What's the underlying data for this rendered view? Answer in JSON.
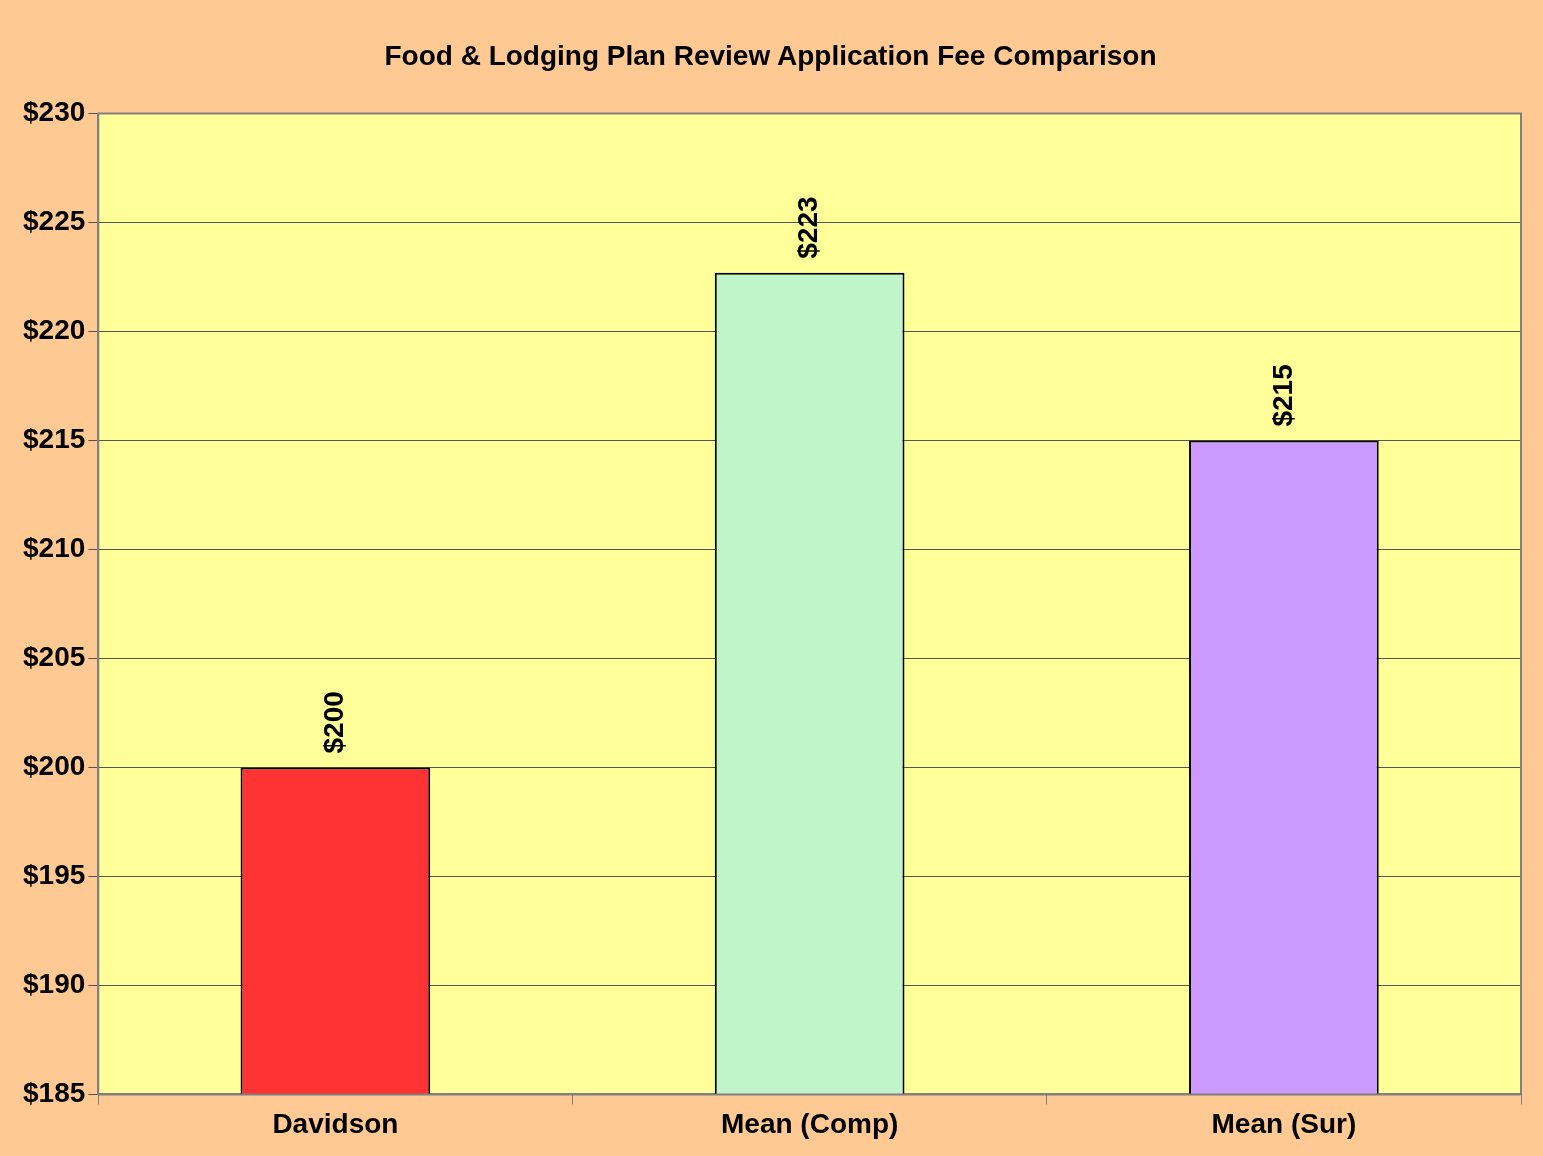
{
  "chart_data": {
    "type": "bar",
    "title": "Food & Lodging Plan Review Application Fee Comparison",
    "categories": [
      "Davidson",
      "Mean (Comp)",
      "Mean (Sur)"
    ],
    "values": [
      200,
      222.7,
      215
    ],
    "colors": [
      "#ff3333",
      "#bff5c8",
      "#cc99ff"
    ],
    "value_labels": [
      "$200",
      "$223",
      "$215"
    ],
    "ylim": [
      185,
      230
    ],
    "yticks": [
      {
        "value": 185,
        "label": "$185"
      },
      {
        "value": 190,
        "label": "$190"
      },
      {
        "value": 195,
        "label": "$195"
      },
      {
        "value": 200,
        "label": "$200"
      },
      {
        "value": 205,
        "label": "$205"
      },
      {
        "value": 210,
        "label": "$210"
      },
      {
        "value": 215,
        "label": "$215"
      },
      {
        "value": 220,
        "label": "$220"
      },
      {
        "value": 225,
        "label": "$225"
      },
      {
        "value": 230,
        "label": "$230"
      }
    ],
    "grid": "y",
    "legend": false
  }
}
